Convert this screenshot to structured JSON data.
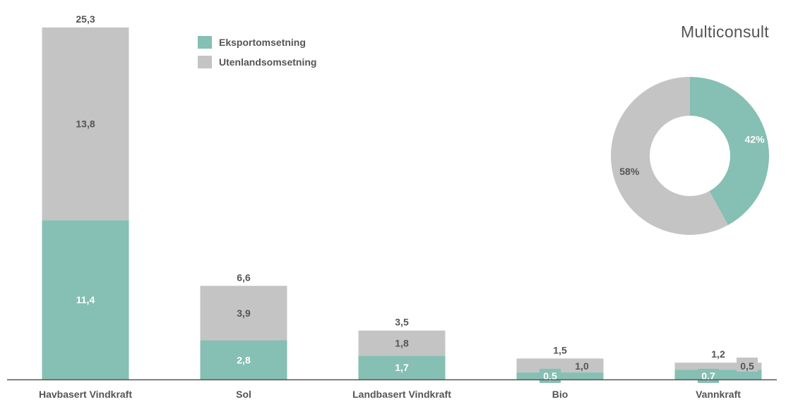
{
  "brand": "Multiconsult",
  "legend": {
    "export_label": "Eksportomsetning",
    "foreign_label": "Utenlandsomsetning"
  },
  "colors": {
    "export": "#86bfb3",
    "foreign": "#c4c4c4",
    "axis": "#555555",
    "text": "#555555"
  },
  "chart_data": [
    {
      "type": "bar",
      "stacked": true,
      "categories": [
        "Havbasert Vindkraft",
        "Sol",
        "Landbasert Vindkraft",
        "Bio",
        "Vannkraft"
      ],
      "series": [
        {
          "name": "Eksportomsetning",
          "values": [
            11.4,
            2.8,
            1.7,
            0.5,
            0.7
          ],
          "labels": [
            "11,4",
            "2,8",
            "1,7",
            "0,5",
            "0,7"
          ]
        },
        {
          "name": "Utenlandsomsetning",
          "values": [
            13.8,
            3.9,
            1.8,
            1.0,
            0.5
          ],
          "labels": [
            "13,8",
            "3,9",
            "1,8",
            "1,0",
            "0,5"
          ]
        }
      ],
      "totals": [
        25.3,
        6.6,
        3.5,
        1.5,
        1.2
      ],
      "total_labels": [
        "25,3",
        "6,6",
        "3,5",
        "1,5",
        "1,2"
      ],
      "ylim": [
        0,
        25.3
      ],
      "grid": false,
      "legend_position": "top"
    },
    {
      "type": "pie",
      "donut": true,
      "slices": [
        {
          "name": "Eksportomsetning",
          "value": 42,
          "label": "42%"
        },
        {
          "name": "Utenlandsomsetning",
          "value": 58,
          "label": "58%"
        }
      ]
    }
  ]
}
